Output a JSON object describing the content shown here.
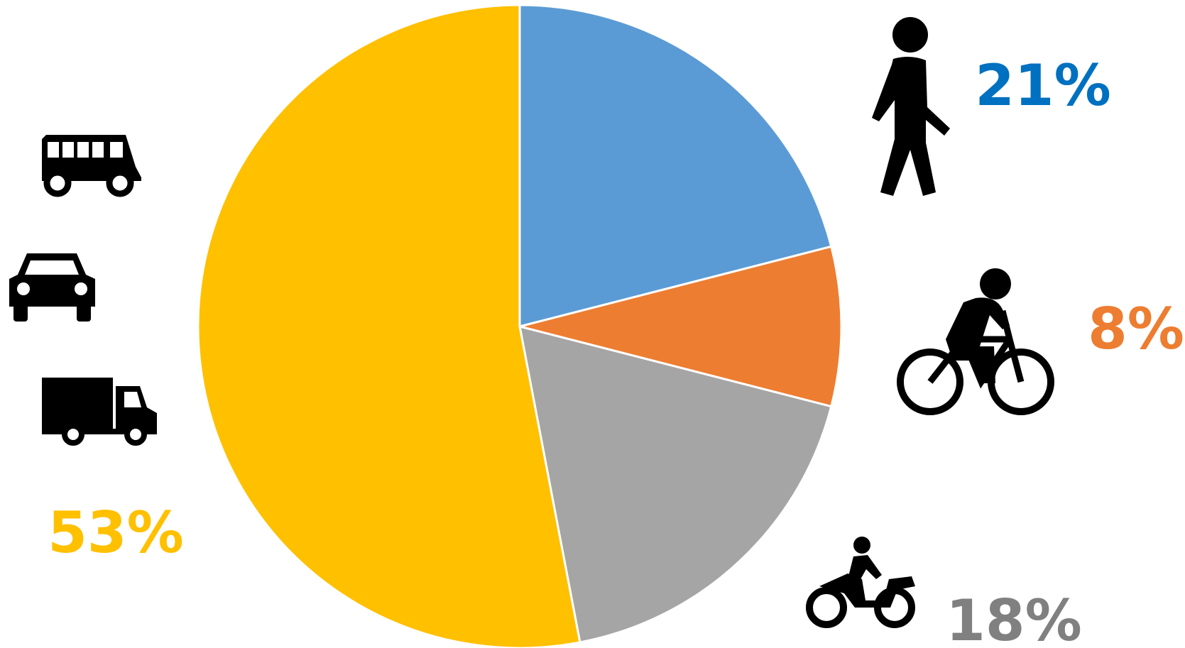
{
  "chart_data": {
    "type": "pie",
    "values": [
      21,
      8,
      18,
      53
    ],
    "value_labels": [
      "21%",
      "8%",
      "18%",
      "53%"
    ],
    "colors": [
      "#5B9BD5",
      "#ED7D31",
      "#A5A5A5",
      "#FFC000"
    ],
    "label_colors": [
      "#0070C0",
      "#ED7D31",
      "#808080",
      "#FFC000"
    ]
  }
}
